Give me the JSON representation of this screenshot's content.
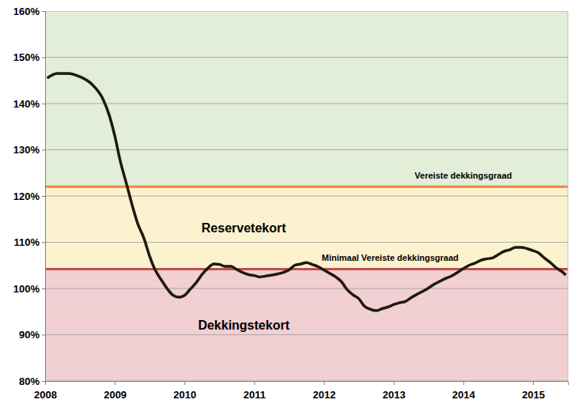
{
  "chart_data": {
    "type": "line",
    "color": "#1c1c0c",
    "grid": true,
    "xlim": [
      2008,
      2015.5
    ],
    "xticks": [
      2008,
      2009,
      2010,
      2011,
      2012,
      2013,
      2014,
      2015
    ],
    "ylim": [
      80,
      160
    ],
    "yticks": [
      {
        "value": 80,
        "label": "80%"
      },
      {
        "value": 90,
        "label": "90%"
      },
      {
        "value": 100,
        "label": "100%"
      },
      {
        "value": 110,
        "label": "110%"
      },
      {
        "value": 120,
        "label": "120%"
      },
      {
        "value": 130,
        "label": "130%"
      },
      {
        "value": 140,
        "label": "140%"
      },
      {
        "value": 150,
        "label": "150%"
      },
      {
        "value": 160,
        "label": "160%"
      }
    ],
    "thresholds": [
      {
        "label": "Vereiste dekkingsgraad",
        "value": 122,
        "color": "#f0843c"
      },
      {
        "label": "Minimaal Vereiste dekkingsgraad",
        "value": 104.2,
        "color": "#c0504d"
      }
    ],
    "zones": [
      {
        "color": "#e3eed9"
      },
      {
        "label": "Reservetekort",
        "color": "#fdf2cf"
      },
      {
        "label": "Dekkingstekort",
        "color": "#f2cfd3"
      }
    ],
    "x": [
      2008.03,
      2008.17,
      2008.33,
      2008.5,
      2008.67,
      2008.83,
      2008.92,
      2009.0,
      2009.08,
      2009.17,
      2009.25,
      2009.33,
      2009.42,
      2009.5,
      2009.58,
      2009.67,
      2009.75,
      2009.83,
      2009.92,
      2010.0,
      2010.08,
      2010.17,
      2010.25,
      2010.33,
      2010.42,
      2010.5,
      2010.58,
      2010.67,
      2010.75,
      2010.83,
      2010.92,
      2011.0,
      2011.08,
      2011.17,
      2011.25,
      2011.42,
      2011.5,
      2011.58,
      2011.67,
      2011.75,
      2011.83,
      2011.92,
      2012.0,
      2012.08,
      2012.17,
      2012.25,
      2012.33,
      2012.42,
      2012.5,
      2012.58,
      2012.67,
      2012.75,
      2012.83,
      2012.92,
      2013.0,
      2013.08,
      2013.17,
      2013.25,
      2013.33,
      2013.42,
      2013.5,
      2013.58,
      2013.67,
      2013.75,
      2013.83,
      2013.92,
      2014.0,
      2014.08,
      2014.17,
      2014.25,
      2014.33,
      2014.42,
      2014.5,
      2014.58,
      2014.67,
      2014.75,
      2014.83,
      2014.92,
      2015.0,
      2015.08,
      2015.17,
      2015.25,
      2015.33,
      2015.42,
      2015.47
    ],
    "values": [
      145.5,
      146.5,
      146.5,
      145.8,
      144.2,
      141,
      137.5,
      133,
      127.5,
      122.5,
      118,
      114,
      110.8,
      107,
      104,
      101.8,
      100,
      98.6,
      98.1,
      98.5,
      99.8,
      101.3,
      103,
      104.3,
      105.3,
      105.2,
      104.8,
      104.8,
      104.1,
      103.5,
      103,
      102.8,
      102.5,
      102.7,
      102.9,
      103.5,
      104,
      105,
      105.3,
      105.6,
      105.2,
      104.7,
      104,
      103.3,
      102.5,
      101.5,
      99.8,
      98.6,
      97.8,
      96.2,
      95.5,
      95.2,
      95.6,
      96,
      96.5,
      96.9,
      97.2,
      98,
      98.7,
      99.4,
      100.1,
      100.9,
      101.6,
      102.2,
      102.7,
      103.5,
      104.3,
      105,
      105.5,
      106.1,
      106.4,
      106.6,
      107.3,
      108,
      108.4,
      108.9,
      108.9,
      108.6,
      108.2,
      107.7,
      106.5,
      105.6,
      104.5,
      103.6,
      102.9
    ]
  }
}
